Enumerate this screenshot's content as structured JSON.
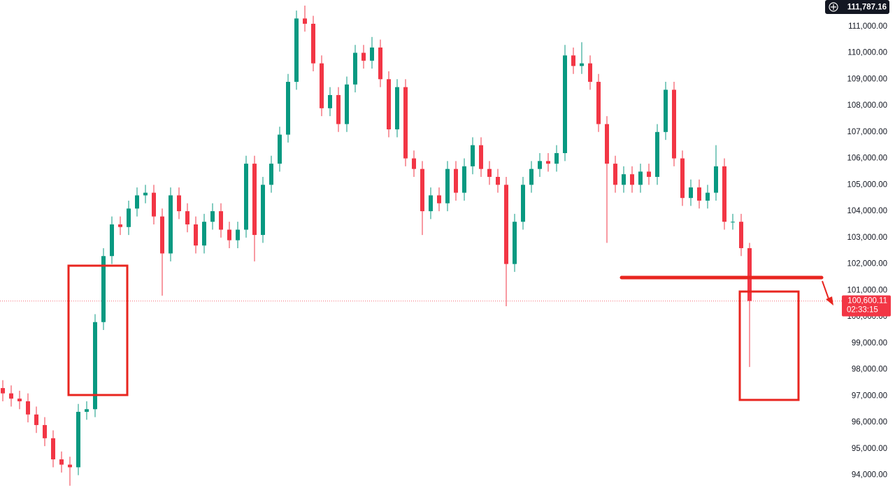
{
  "chart_data": {
    "type": "candlestick",
    "up_color": "#089981",
    "down_color": "#f23645",
    "ylim": [
      93250,
      112000
    ],
    "yticks": [
      {
        "value": 94000,
        "label": "94,000.00"
      },
      {
        "value": 95000,
        "label": "95,000.00"
      },
      {
        "value": 96000,
        "label": "96,000.00"
      },
      {
        "value": 97000,
        "label": "97,000.00"
      },
      {
        "value": 98000,
        "label": "98,000.00"
      },
      {
        "value": 99000,
        "label": "99,000.00"
      },
      {
        "value": 100000,
        "label": "100,000.00"
      },
      {
        "value": 101000,
        "label": "101,000.00"
      },
      {
        "value": 102000,
        "label": "102,000.00"
      },
      {
        "value": 103000,
        "label": "103,000.00"
      },
      {
        "value": 104000,
        "label": "104,000.00"
      },
      {
        "value": 105000,
        "label": "105,000.00"
      },
      {
        "value": 106000,
        "label": "106,000.00"
      },
      {
        "value": 107000,
        "label": "107,000.00"
      },
      {
        "value": 108000,
        "label": "108,000.00"
      },
      {
        "value": 109000,
        "label": "109,000.00"
      },
      {
        "value": 110000,
        "label": "110,000.00"
      },
      {
        "value": 111000,
        "label": "111,000.00"
      }
    ],
    "high_price": {
      "value": 111787.16,
      "label": "111,787.16"
    },
    "last_price": {
      "value": 100600.11,
      "label": "100,600.11"
    },
    "countdown": "02:33:15",
    "open": [
      97300,
      97100,
      96900,
      96800,
      96300,
      95900,
      95400,
      94600,
      94400,
      94300,
      96400,
      96500,
      99800,
      102300,
      103500,
      103400,
      104100,
      104600,
      104700,
      103800,
      102400,
      104600,
      104000,
      103500,
      102700,
      103600,
      104000,
      103300,
      102900,
      103300,
      105800,
      103100,
      105000,
      105800,
      106900,
      108900,
      111300,
      111100,
      109600,
      107900,
      108400,
      107300,
      108800,
      110000,
      109700,
      110200,
      109000,
      107100,
      108700,
      106000,
      105600,
      104000,
      104600,
      104300,
      105600,
      104700,
      105700,
      106500,
      105600,
      105300,
      105000,
      102000,
      103600,
      105000,
      105600,
      105900,
      105800,
      106200,
      109900,
      109500,
      109600,
      108900,
      107300,
      105800,
      105000,
      105400,
      105000,
      105500,
      105300,
      107000,
      108600,
      106000,
      104500,
      104900,
      104400,
      104700,
      105700,
      103600,
      103600,
      102600
    ],
    "high": [
      97600,
      97400,
      97200,
      97100,
      96600,
      96200,
      95700,
      94900,
      94700,
      96700,
      96800,
      100100,
      102600,
      103800,
      103800,
      104400,
      104900,
      105000,
      105000,
      104100,
      104900,
      104900,
      104300,
      103800,
      103900,
      104300,
      104300,
      103600,
      103600,
      106100,
      106100,
      105300,
      106100,
      107200,
      109200,
      111600,
      111787.16,
      111400,
      109900,
      108700,
      108700,
      109100,
      110300,
      110300,
      110600,
      110500,
      109300,
      109000,
      109000,
      106300,
      105900,
      104900,
      104900,
      105900,
      105900,
      106000,
      106800,
      106800,
      105900,
      105600,
      105300,
      103900,
      105300,
      105900,
      106200,
      106200,
      106500,
      110300,
      110200,
      110400,
      109900,
      109200,
      107600,
      106100,
      105700,
      105700,
      105800,
      105800,
      107300,
      108900,
      108900,
      106300,
      105200,
      105200,
      105000,
      106500,
      106000,
      103900,
      103900,
      102800
    ],
    "low": [
      96800,
      96600,
      96500,
      96000,
      95600,
      95100,
      94300,
      94100,
      93600,
      94000,
      96100,
      96200,
      99500,
      102000,
      103100,
      103100,
      103800,
      104300,
      103500,
      100800,
      102100,
      103700,
      103200,
      102400,
      102400,
      103300,
      103000,
      102600,
      102600,
      103000,
      102100,
      102800,
      104700,
      105500,
      106600,
      108600,
      110800,
      109300,
      107600,
      107600,
      107000,
      107000,
      108500,
      109400,
      109400,
      108700,
      106800,
      106800,
      105700,
      105300,
      103100,
      103700,
      104000,
      104000,
      104400,
      104400,
      105400,
      105300,
      105000,
      104700,
      100400,
      101700,
      103300,
      104700,
      105300,
      105500,
      105500,
      105900,
      109200,
      109200,
      108600,
      107000,
      102800,
      104700,
      104700,
      104700,
      104700,
      105000,
      105000,
      106700,
      105700,
      104200,
      104200,
      104100,
      104100,
      104400,
      103300,
      103300,
      102300,
      98100
    ],
    "close": [
      97100,
      96900,
      96800,
      96300,
      95900,
      95400,
      94600,
      94400,
      94300,
      96400,
      96500,
      99800,
      102300,
      103500,
      103400,
      104100,
      104600,
      104700,
      103800,
      102400,
      104600,
      104000,
      103500,
      102700,
      103600,
      104000,
      103300,
      102900,
      103300,
      105800,
      103100,
      105000,
      105800,
      106900,
      108900,
      111300,
      111100,
      109600,
      107900,
      108400,
      107300,
      108800,
      110000,
      109700,
      110200,
      109000,
      107100,
      108700,
      106000,
      105600,
      104000,
      104600,
      104300,
      105600,
      104700,
      105700,
      106500,
      105600,
      105300,
      105000,
      102000,
      103600,
      105000,
      105600,
      105900,
      105800,
      106200,
      109900,
      109500,
      109600,
      108900,
      107300,
      105800,
      105000,
      105400,
      105000,
      105500,
      105300,
      107000,
      108600,
      106000,
      104500,
      104900,
      104400,
      104700,
      105700,
      103600,
      103600,
      102600,
      100600.11
    ]
  }
}
